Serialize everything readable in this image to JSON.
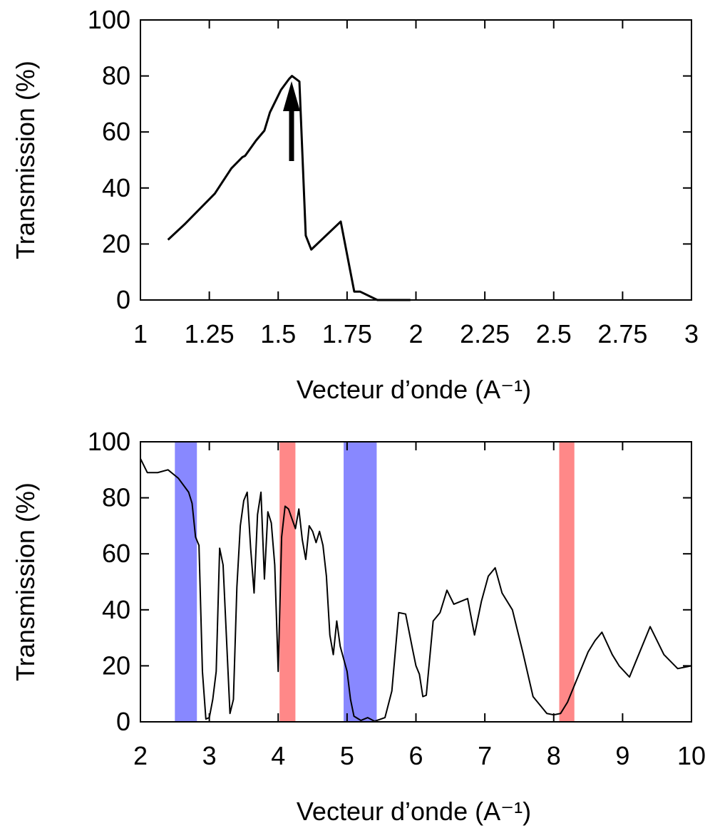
{
  "chart_data": [
    {
      "type": "line",
      "xlabel": "Vecteur d’onde (A⁻¹)",
      "ylabel": "Transmission (%)",
      "xlim": [
        1,
        3
      ],
      "ylim": [
        0,
        100
      ],
      "xticks": [
        1,
        1.25,
        1.5,
        1.75,
        2,
        2.25,
        2.5,
        2.75,
        3
      ],
      "yticks": [
        0,
        20,
        40,
        60,
        80,
        100
      ],
      "series": [
        {
          "color": "#000000",
          "x": [
            1.1,
            1.16,
            1.22,
            1.27,
            1.33,
            1.37,
            1.38,
            1.42,
            1.45,
            1.47,
            1.51,
            1.54,
            1.55,
            1.577,
            1.6,
            1.62,
            1.727,
            1.776,
            1.797,
            1.86,
            1.98
          ],
          "values": [
            21.5,
            27,
            33,
            38,
            47,
            51,
            51.5,
            57,
            60.5,
            67,
            75,
            79,
            80,
            78,
            23,
            18,
            28,
            3,
            3,
            0,
            0
          ]
        }
      ]
    },
    {
      "type": "line",
      "xlabel": "Vecteur d’onde (A⁻¹)",
      "ylabel": "Transmission (%)",
      "xlim": [
        2,
        10
      ],
      "ylim": [
        0,
        100
      ],
      "xticks": [
        2,
        3,
        4,
        5,
        6,
        7,
        8,
        9,
        10
      ],
      "yticks": [
        0,
        20,
        40,
        60,
        80,
        100
      ],
      "bands": [
        {
          "start": 2.5,
          "end": 2.82,
          "color": "#8888ff"
        },
        {
          "start": 4.02,
          "end": 4.25,
          "color": "#ff8888"
        },
        {
          "start": 4.95,
          "end": 5.43,
          "color": "#8888ff"
        },
        {
          "start": 8.08,
          "end": 8.3,
          "color": "#ff8888"
        }
      ],
      "series": [
        {
          "color": "#000000",
          "x": [
            2.0,
            2.1,
            2.25,
            2.4,
            2.55,
            2.7,
            2.75,
            2.8,
            2.85,
            2.9,
            2.95,
            3.0,
            3.05,
            3.1,
            3.15,
            3.2,
            3.3,
            3.35,
            3.4,
            3.45,
            3.5,
            3.55,
            3.6,
            3.65,
            3.7,
            3.75,
            3.8,
            3.85,
            3.9,
            3.95,
            4.0,
            4.05,
            4.1,
            4.15,
            4.25,
            4.3,
            4.35,
            4.4,
            4.45,
            4.5,
            4.55,
            4.6,
            4.65,
            4.7,
            4.75,
            4.8,
            4.85,
            4.9,
            5.0,
            5.05,
            5.1,
            5.2,
            5.3,
            5.4,
            5.55,
            5.65,
            5.75,
            5.85,
            5.95,
            6.0,
            6.05,
            6.1,
            6.15,
            6.25,
            6.35,
            6.45,
            6.55,
            6.75,
            6.85,
            6.95,
            7.05,
            7.15,
            7.25,
            7.4,
            7.55,
            7.7,
            7.9,
            8.0,
            8.1,
            8.2,
            8.35,
            8.5,
            8.6,
            8.7,
            8.85,
            8.95,
            9.1,
            9.4,
            9.6,
            9.8,
            10.0
          ],
          "values": [
            94,
            89,
            89,
            90,
            87,
            82,
            78,
            66,
            63,
            18,
            1,
            1.5,
            8,
            18,
            62,
            56,
            3,
            8,
            48,
            70,
            79,
            82,
            62,
            46,
            74,
            82,
            51,
            75,
            71,
            56,
            18,
            66,
            77,
            76,
            69,
            76,
            65,
            58,
            70,
            68,
            64,
            68,
            63,
            52,
            31,
            24,
            36,
            27,
            18,
            8,
            2,
            0.5,
            1.5,
            0.2,
            1.5,
            11,
            39,
            38.5,
            26,
            20,
            17,
            9,
            9.5,
            36,
            39,
            47,
            42,
            44,
            31,
            43,
            52,
            55,
            46,
            40,
            25,
            9,
            3,
            2.5,
            3,
            7,
            16,
            25,
            29,
            32,
            24,
            20,
            16,
            34,
            24,
            19,
            20
          ]
        }
      ]
    }
  ]
}
